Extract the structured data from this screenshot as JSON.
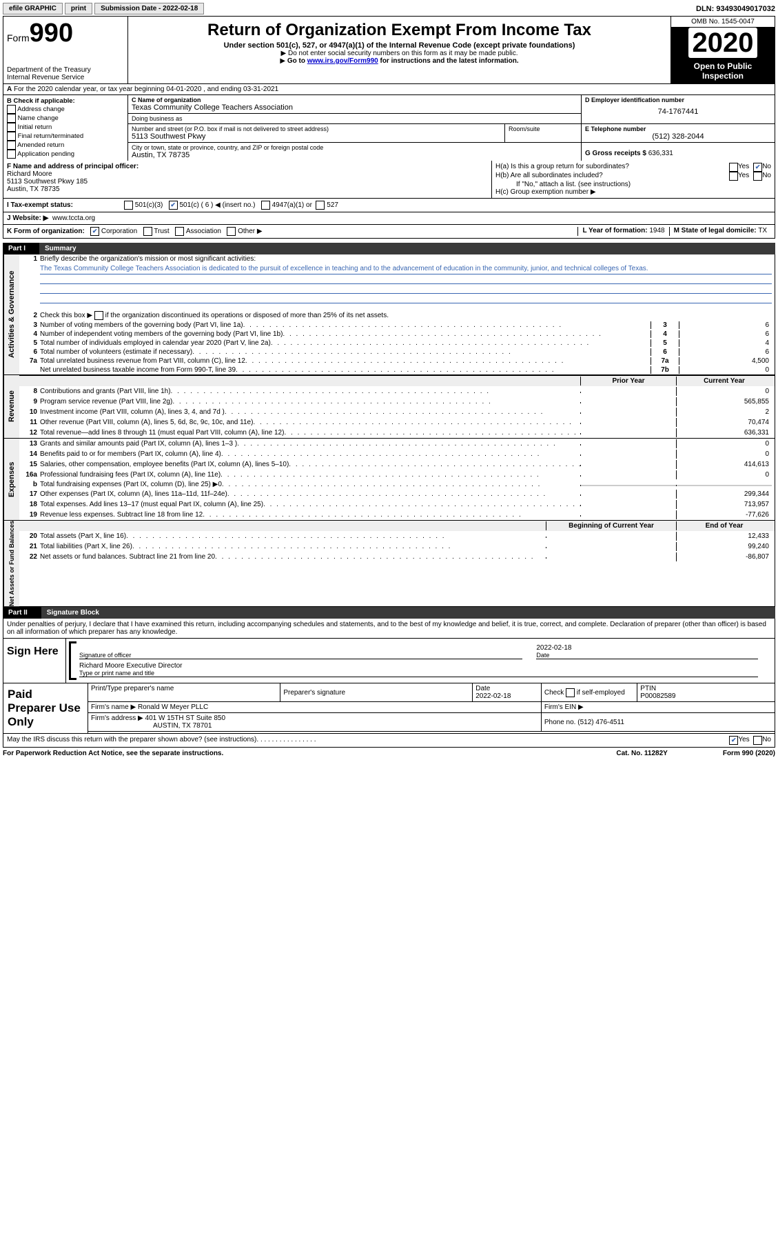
{
  "topbar": {
    "efile": "efile GRAPHIC",
    "print": "print",
    "submission": "Submission Date - 2022-02-18",
    "dln": "DLN: 93493049017032"
  },
  "header": {
    "form_prefix": "Form",
    "form_number": "990",
    "title": "Return of Organization Exempt From Income Tax",
    "subtitle": "Under section 501(c), 527, or 4947(a)(1) of the Internal Revenue Code (except private foundations)",
    "note1": "Do not enter social security numbers on this form as it may be made public.",
    "note2_prefix": "Go to ",
    "note2_link": "www.irs.gov/Form990",
    "note2_suffix": " for instructions and the latest information.",
    "dept": "Department of the Treasury\nInternal Revenue Service",
    "omb": "OMB No. 1545-0047",
    "year": "2020",
    "inspect": "Open to Public Inspection"
  },
  "row_a": "For the 2020 calendar year, or tax year beginning 04-01-2020    , and ending 03-31-2021",
  "box_b": {
    "header": "B Check if applicable:",
    "items": [
      "Address change",
      "Name change",
      "Initial return",
      "Final return/terminated",
      "Amended return",
      "Application pending"
    ]
  },
  "box_c": {
    "label_name": "C Name of organization",
    "name": "Texas Community College Teachers Association",
    "dba_label": "Doing business as",
    "dba": "",
    "addr_label": "Number and street (or P.O. box if mail is not delivered to street address)",
    "room_label": "Room/suite",
    "addr": "5113 Southwest Pkwy",
    "city_label": "City or town, state or province, country, and ZIP or foreign postal code",
    "city": "Austin, TX  78735"
  },
  "box_d": {
    "label": "D Employer identification number",
    "value": "74-1767441"
  },
  "box_e": {
    "label": "E Telephone number",
    "value": "(512) 328-2044"
  },
  "box_g": {
    "label": "G Gross receipts $",
    "value": "636,331"
  },
  "box_f": {
    "label": "F  Name and address of principal officer:",
    "name": "Richard Moore",
    "addr1": "5113 Southwest Pkwy 185",
    "addr2": "Austin, TX  78735"
  },
  "box_h": {
    "ha": "H(a)  Is this a group return for subordinates?",
    "hb": "H(b)  Are all subordinates included?",
    "hb_note": "If \"No,\" attach a list. (see instructions)",
    "hc": "H(c)  Group exemption number ▶"
  },
  "row_i": {
    "label": "I   Tax-exempt status:",
    "opt1": "501(c)(3)",
    "opt2": "501(c) ( 6 ) ◀ (insert no.)",
    "opt3": "4947(a)(1) or",
    "opt4": "527"
  },
  "row_j": {
    "label": "J   Website: ▶",
    "value": "www.tccta.org"
  },
  "row_k": {
    "label": "K Form of organization:",
    "opts": [
      "Corporation",
      "Trust",
      "Association",
      "Other ▶"
    ],
    "l_label": "L Year of formation:",
    "l_value": "1948",
    "m_label": "M State of legal domicile:",
    "m_value": "TX"
  },
  "part1": {
    "partnum": "Part I",
    "title": "Summary",
    "line1_label": "Briefly describe the organization's mission or most significant activities:",
    "line1_text": "The Texas Community College Teachers Association is dedicated to the pursuit of excellence in teaching and to the advancement of education in the community, junior, and technical colleges of Texas.",
    "line2": "Check this box ▶       if the organization discontinued its operations or disposed of more than 25% of its net assets.",
    "governance_label": "Activities & Governance",
    "revenue_label": "Revenue",
    "expenses_label": "Expenses",
    "netassets_label": "Net Assets or Fund Balances",
    "prior_year": "Prior Year",
    "current_year": "Current Year",
    "beginning": "Beginning of Current Year",
    "end": "End of Year",
    "lines_gov": [
      {
        "n": "3",
        "d": "Number of voting members of the governing body (Part VI, line 1a)",
        "l": "3",
        "v": "6"
      },
      {
        "n": "4",
        "d": "Number of independent voting members of the governing body (Part VI, line 1b)",
        "l": "4",
        "v": "6"
      },
      {
        "n": "5",
        "d": "Total number of individuals employed in calendar year 2020 (Part V, line 2a)",
        "l": "5",
        "v": "4"
      },
      {
        "n": "6",
        "d": "Total number of volunteers (estimate if necessary)",
        "l": "6",
        "v": "6"
      },
      {
        "n": "7a",
        "d": "Total unrelated business revenue from Part VIII, column (C), line 12",
        "l": "7a",
        "v": "4,500"
      },
      {
        "n": "",
        "d": "Net unrelated business taxable income from Form 990-T, line 39",
        "l": "7b",
        "v": "0"
      }
    ],
    "lines_rev": [
      {
        "n": "8",
        "d": "Contributions and grants (Part VIII, line 1h)",
        "py": "",
        "cy": "0"
      },
      {
        "n": "9",
        "d": "Program service revenue (Part VIII, line 2g)",
        "py": "",
        "cy": "565,855"
      },
      {
        "n": "10",
        "d": "Investment income (Part VIII, column (A), lines 3, 4, and 7d )",
        "py": "",
        "cy": "2"
      },
      {
        "n": "11",
        "d": "Other revenue (Part VIII, column (A), lines 5, 6d, 8c, 9c, 10c, and 11e)",
        "py": "",
        "cy": "70,474"
      },
      {
        "n": "12",
        "d": "Total revenue—add lines 8 through 11 (must equal Part VIII, column (A), line 12)",
        "py": "",
        "cy": "636,331"
      }
    ],
    "lines_exp": [
      {
        "n": "13",
        "d": "Grants and similar amounts paid (Part IX, column (A), lines 1–3 )",
        "py": "",
        "cy": "0"
      },
      {
        "n": "14",
        "d": "Benefits paid to or for members (Part IX, column (A), line 4)",
        "py": "",
        "cy": "0"
      },
      {
        "n": "15",
        "d": "Salaries, other compensation, employee benefits (Part IX, column (A), lines 5–10)",
        "py": "",
        "cy": "414,613"
      },
      {
        "n": "16a",
        "d": "Professional fundraising fees (Part IX, column (A), line 11e)",
        "py": "",
        "cy": "0"
      },
      {
        "n": "b",
        "d": "Total fundraising expenses (Part IX, column (D), line 25) ▶0",
        "py": "grey",
        "cy": "grey"
      },
      {
        "n": "17",
        "d": "Other expenses (Part IX, column (A), lines 11a–11d, 11f–24e)",
        "py": "",
        "cy": "299,344"
      },
      {
        "n": "18",
        "d": "Total expenses. Add lines 13–17 (must equal Part IX, column (A), line 25)",
        "py": "",
        "cy": "713,957"
      },
      {
        "n": "19",
        "d": "Revenue less expenses. Subtract line 18 from line 12",
        "py": "",
        "cy": "-77,626"
      }
    ],
    "lines_net": [
      {
        "n": "20",
        "d": "Total assets (Part X, line 16)",
        "py": "",
        "cy": "12,433"
      },
      {
        "n": "21",
        "d": "Total liabilities (Part X, line 26)",
        "py": "",
        "cy": "99,240"
      },
      {
        "n": "22",
        "d": "Net assets or fund balances. Subtract line 21 from line 20",
        "py": "",
        "cy": "-86,807"
      }
    ]
  },
  "part2": {
    "partnum": "Part II",
    "title": "Signature Block",
    "declaration": "Under penalties of perjury, I declare that I have examined this return, including accompanying schedules and statements, and to the best of my knowledge and belief, it is true, correct, and complete. Declaration of preparer (other than officer) is based on all information of which preparer has any knowledge.",
    "sign_here": "Sign Here",
    "sig_officer": "Signature of officer",
    "sig_date": "Date",
    "sig_date_val": "2022-02-18",
    "officer_name": "Richard Moore  Executive Director",
    "type_name": "Type or print name and title"
  },
  "preparer": {
    "label": "Paid Preparer Use Only",
    "r1c1": "Print/Type preparer's name",
    "r1c2": "Preparer's signature",
    "r1c3_label": "Date",
    "r1c3": "2022-02-18",
    "r1c4_label": "Check",
    "r1c4_suffix": "if self-employed",
    "r1c5_label": "PTIN",
    "r1c5": "P00082589",
    "r2c1_label": "Firm's name    ▶",
    "r2c1": "Ronald W Meyer PLLC",
    "r2c2_label": "Firm's EIN ▶",
    "r3c1_label": "Firm's address ▶",
    "r3c1a": "401 W 15TH ST Suite 850",
    "r3c1b": "AUSTIN, TX  78701",
    "r3c2_label": "Phone no.",
    "r3c2": "(512) 476-4511"
  },
  "discuss": "May the IRS discuss this return with the preparer shown above? (see instructions)",
  "footer": {
    "left": "For Paperwork Reduction Act Notice, see the separate instructions.",
    "mid": "Cat. No. 11282Y",
    "right": "Form 990 (2020)"
  },
  "yesno": {
    "yes": "Yes",
    "no": "No"
  }
}
